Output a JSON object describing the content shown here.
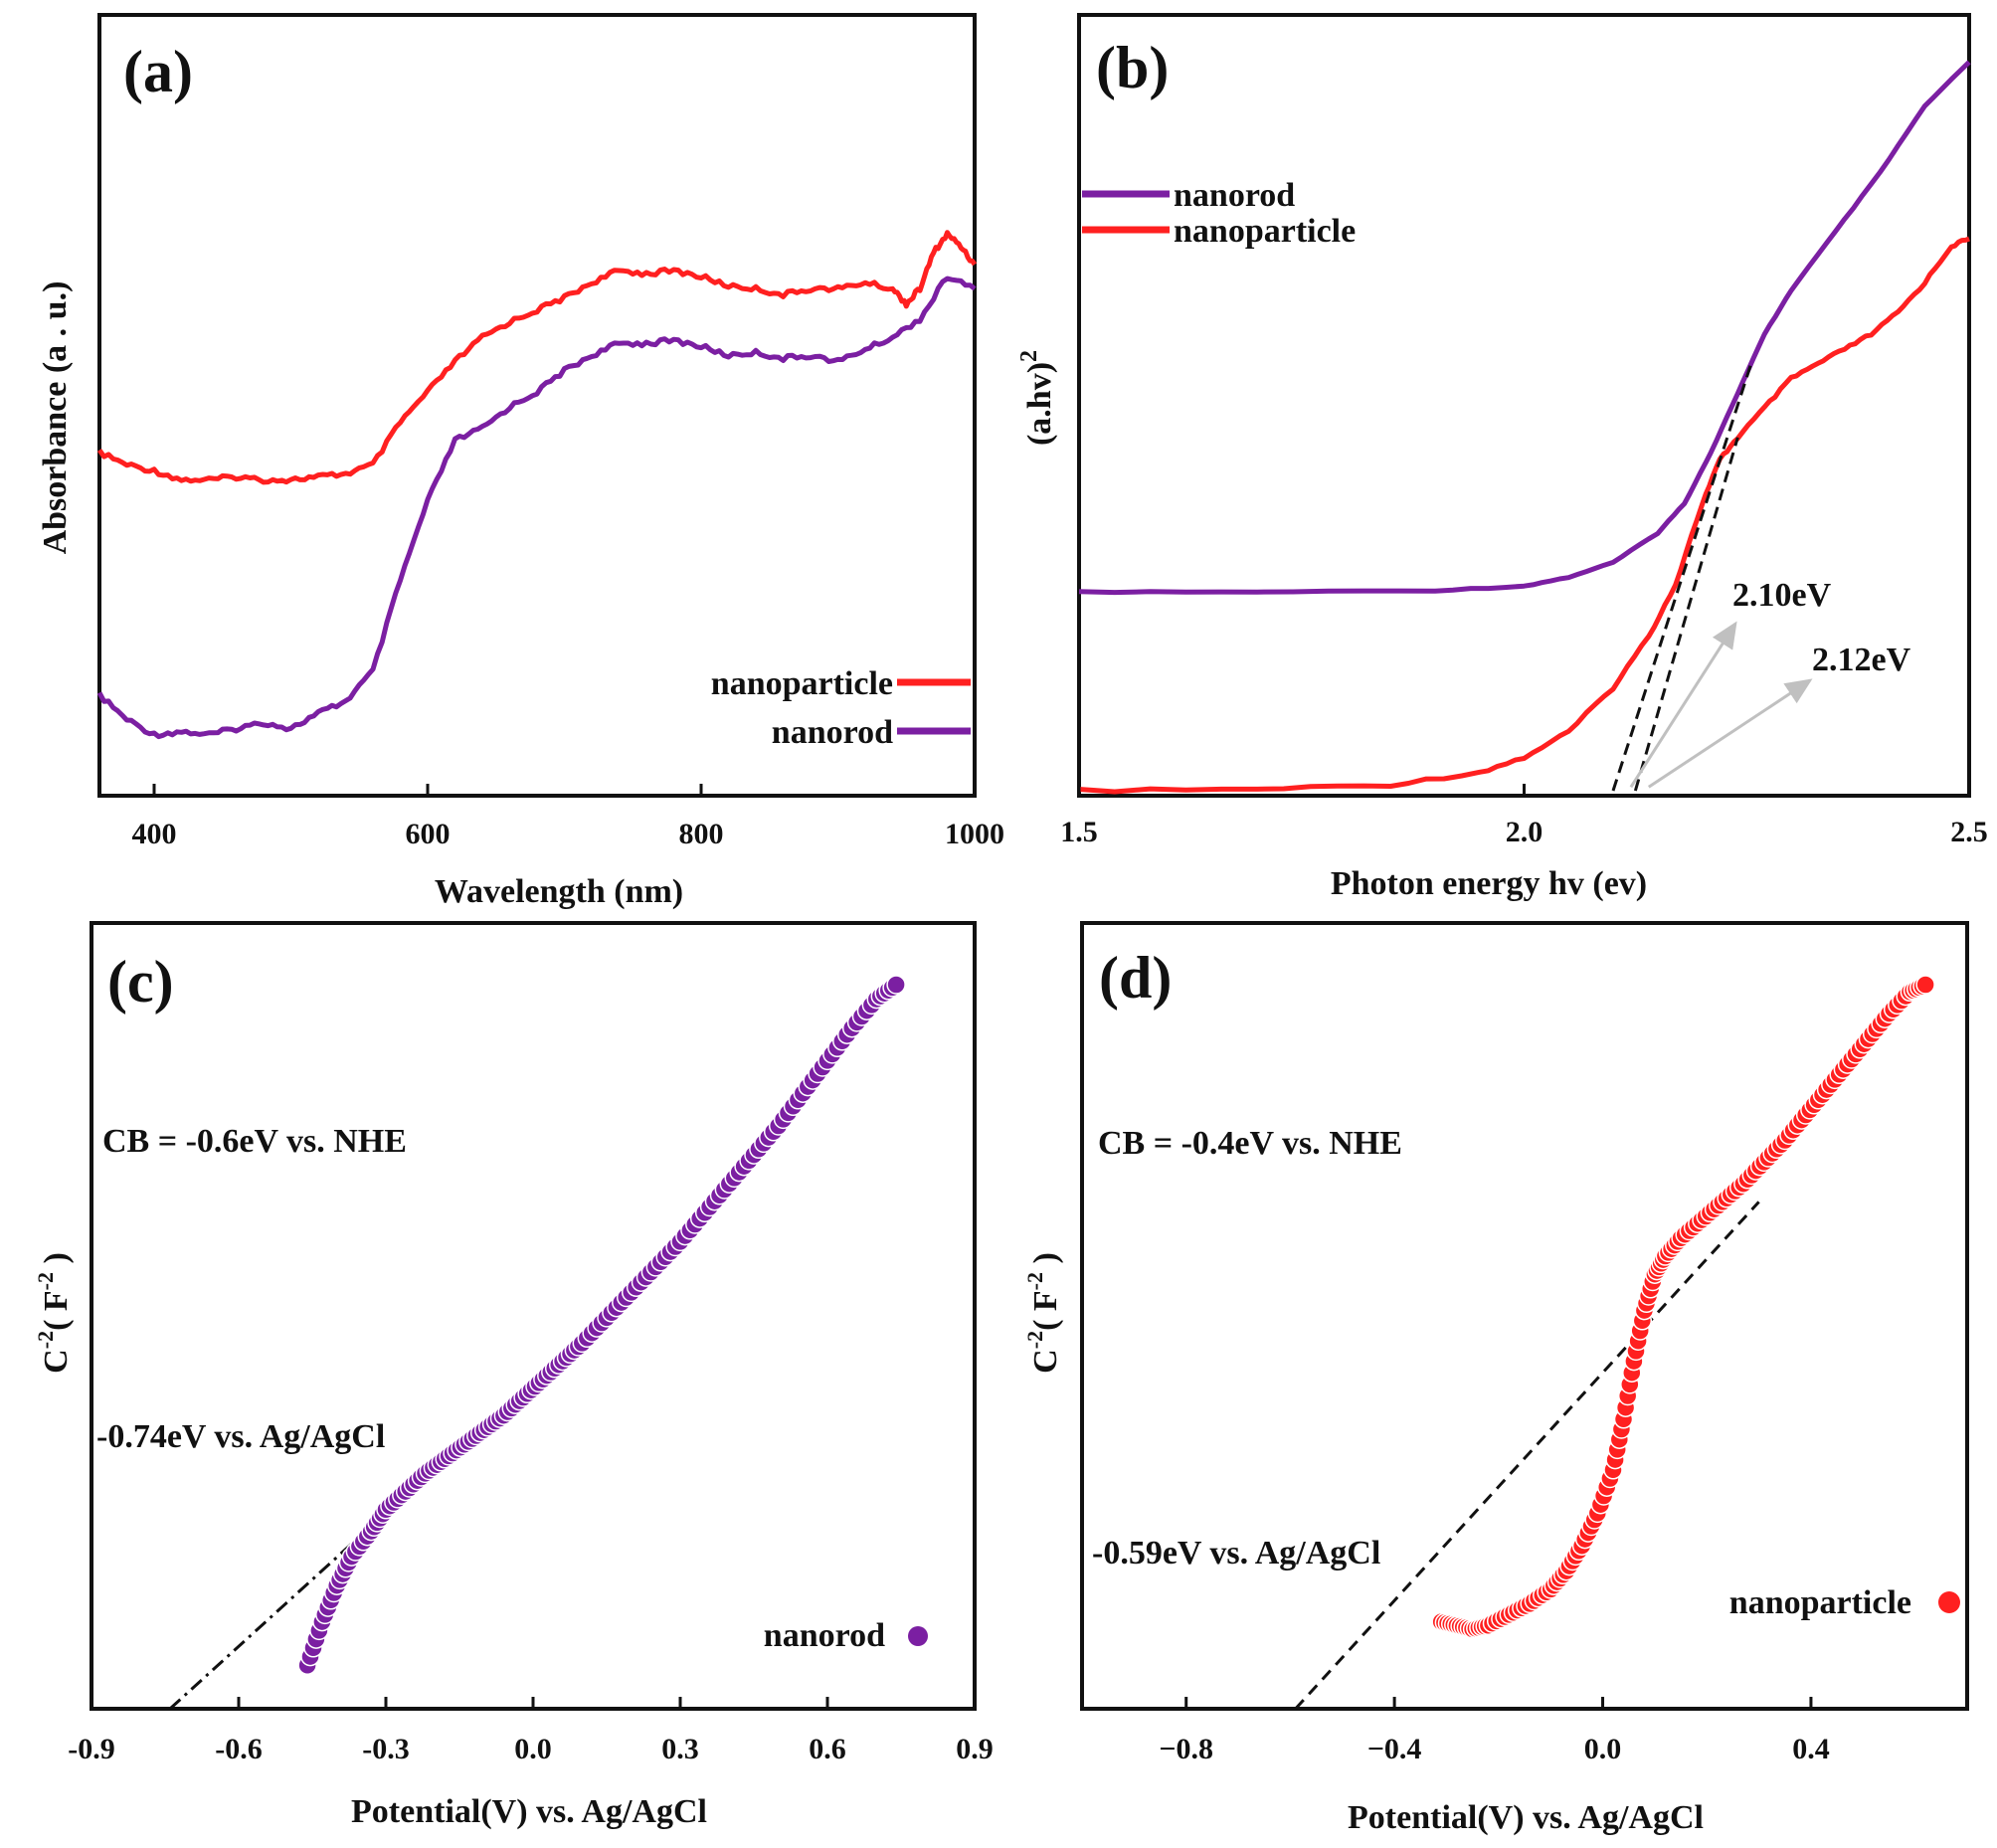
{
  "colors": {
    "nanorod": "#7b1fa2",
    "nanoparticle": "#ff2020",
    "arrow": "#c0c0c0",
    "axis": "#111111"
  },
  "chart_data": [
    {
      "panel": "a",
      "panel_label": "(a)",
      "type": "line",
      "title": "",
      "xlabel": "Wavelength (nm)",
      "ylabel": "Absorbance (a . u.)",
      "xlim": [
        360,
        1000
      ],
      "ylim": [
        0,
        1
      ],
      "xticks": [
        400,
        600,
        800,
        1000
      ],
      "xtick_labels": [
        "400",
        "600",
        "800",
        "1000"
      ],
      "yticks_shown": false,
      "legend": "bottom-right",
      "series": [
        {
          "name": "nanoparticle",
          "color": "#ff2020",
          "x": [
            360,
            380,
            400,
            420,
            440,
            460,
            480,
            500,
            520,
            540,
            560,
            580,
            600,
            620,
            640,
            660,
            680,
            700,
            720,
            740,
            760,
            780,
            800,
            820,
            840,
            860,
            880,
            900,
            920,
            940,
            950,
            960,
            970,
            980,
            990,
            1000
          ],
          "y": [
            0.5,
            0.48,
            0.47,
            0.455,
            0.455,
            0.46,
            0.455,
            0.455,
            0.46,
            0.465,
            0.48,
            0.55,
            0.6,
            0.65,
            0.69,
            0.715,
            0.735,
            0.755,
            0.78,
            0.8,
            0.795,
            0.8,
            0.79,
            0.775,
            0.77,
            0.76,
            0.77,
            0.77,
            0.78,
            0.77,
            0.745,
            0.77,
            0.83,
            0.86,
            0.84,
            0.81
          ]
        },
        {
          "name": "nanorod",
          "color": "#7b1fa2",
          "x": [
            360,
            380,
            400,
            420,
            440,
            460,
            480,
            500,
            520,
            540,
            560,
            580,
            600,
            620,
            640,
            660,
            680,
            700,
            720,
            740,
            760,
            780,
            800,
            820,
            840,
            860,
            880,
            900,
            920,
            940,
            960,
            980,
            1000
          ],
          "y": [
            0.1,
            0.06,
            0.035,
            0.04,
            0.035,
            0.045,
            0.055,
            0.045,
            0.07,
            0.09,
            0.14,
            0.29,
            0.42,
            0.52,
            0.54,
            0.575,
            0.6,
            0.635,
            0.66,
            0.68,
            0.68,
            0.685,
            0.675,
            0.66,
            0.665,
            0.655,
            0.66,
            0.65,
            0.67,
            0.69,
            0.72,
            0.79,
            0.77
          ]
        }
      ]
    },
    {
      "panel": "b",
      "panel_label": "(b)",
      "type": "line",
      "title": "",
      "xlabel": "Photon energy hv (ev)",
      "ylabel": "(a.hv)",
      "ylabel_superscript": "2",
      "xlim": [
        1.5,
        2.5
      ],
      "ylim": [
        0,
        1
      ],
      "xticks": [
        1.5,
        2.0,
        2.5
      ],
      "xtick_labels": [
        "1.5",
        "2.0",
        "2.5"
      ],
      "yticks_shown": false,
      "legend": "top-left",
      "series": [
        {
          "name": "nanorod",
          "color": "#7b1fa2",
          "x": [
            1.5,
            1.7,
            1.9,
            2.0,
            2.05,
            2.1,
            2.15,
            2.18,
            2.21,
            2.24,
            2.27,
            2.3,
            2.35,
            2.4,
            2.45,
            2.5
          ],
          "y": [
            0.27,
            0.27,
            0.272,
            0.278,
            0.29,
            0.31,
            0.35,
            0.39,
            0.46,
            0.54,
            0.62,
            0.68,
            0.76,
            0.84,
            0.93,
            0.99
          ]
        },
        {
          "name": "nanoparticle",
          "color": "#ff2020",
          "x": [
            1.5,
            1.7,
            1.85,
            1.95,
            2.0,
            2.05,
            2.1,
            2.14,
            2.17,
            2.2,
            2.22,
            2.24,
            2.27,
            2.3,
            2.33,
            2.36,
            2.39,
            2.42,
            2.45,
            2.48,
            2.5
          ],
          "y": [
            0.0,
            0.002,
            0.008,
            0.025,
            0.045,
            0.08,
            0.14,
            0.21,
            0.28,
            0.39,
            0.45,
            0.48,
            0.52,
            0.56,
            0.58,
            0.6,
            0.62,
            0.65,
            0.69,
            0.74,
            0.75
          ]
        }
      ],
      "annotations": [
        {
          "text": "2.10eV",
          "intercept": 2.1
        },
        {
          "text": "2.12eV",
          "intercept": 2.12
        }
      ]
    },
    {
      "panel": "c",
      "panel_label": "(c)",
      "type": "scatter",
      "title": "",
      "xlabel": "Potential(V) vs. Ag/AgCl",
      "ylabel": "C",
      "ylabel_superscript": "-2",
      "ylabel_unit": "( F",
      "ylabel_unit_superscript": "-2",
      "ylabel_close": " )",
      "xlim": [
        -0.9,
        0.9
      ],
      "ylim": [
        0,
        1
      ],
      "xticks": [
        -0.9,
        -0.6,
        -0.3,
        0.0,
        0.3,
        0.6,
        0.9
      ],
      "xtick_labels": [
        "-0.9",
        "-0.6",
        "-0.3",
        "0.0",
        "0.3",
        "0.6",
        "0.9"
      ],
      "yticks_shown": false,
      "legend": "bottom-right",
      "series": [
        {
          "name": "nanorod",
          "color": "#7b1fa2",
          "x": [
            -0.46,
            -0.43,
            -0.4,
            -0.37,
            -0.33,
            -0.3,
            -0.26,
            -0.22,
            -0.18,
            -0.14,
            -0.1,
            -0.06,
            -0.02,
            0.02,
            0.06,
            0.1,
            0.15,
            0.2,
            0.25,
            0.3,
            0.35,
            0.4,
            0.45,
            0.5,
            0.55,
            0.6,
            0.65,
            0.7,
            0.74
          ],
          "y": [
            0.06,
            0.12,
            0.17,
            0.21,
            0.245,
            0.275,
            0.3,
            0.325,
            0.345,
            0.365,
            0.385,
            0.405,
            0.43,
            0.455,
            0.48,
            0.505,
            0.54,
            0.575,
            0.61,
            0.645,
            0.685,
            0.725,
            0.765,
            0.805,
            0.85,
            0.895,
            0.94,
            0.98,
            1.0
          ]
        }
      ],
      "fit_line": {
        "x": [
          -0.74,
          0.3
        ],
        "y": [
          0.0,
          0.64
        ]
      },
      "annotations": [
        {
          "text": "CB = -0.6eV vs. NHE"
        },
        {
          "text": "-0.74eV vs. Ag/AgCl"
        }
      ]
    },
    {
      "panel": "d",
      "panel_label": "(d)",
      "type": "scatter",
      "title": "",
      "xlabel": "Potential(V) vs. Ag/AgCl",
      "ylabel": "C",
      "ylabel_superscript": "-2",
      "ylabel_unit": "( F",
      "ylabel_unit_superscript": "-2",
      "ylabel_close": " )",
      "xlim": [
        -1.0,
        0.7
      ],
      "ylim": [
        0,
        1
      ],
      "xticks": [
        -0.8,
        -0.4,
        0.0,
        0.4
      ],
      "xtick_labels": [
        "−0.8",
        "−0.4",
        "0.0",
        "0.4"
      ],
      "yticks_shown": false,
      "legend": "bottom-right",
      "series": [
        {
          "name": "nanoparticle",
          "color": "#ff2020",
          "x": [
            -0.31,
            -0.28,
            -0.25,
            -0.22,
            -0.18,
            -0.14,
            -0.1,
            -0.07,
            -0.04,
            -0.01,
            0.02,
            0.04,
            0.06,
            0.08,
            0.1,
            0.12,
            0.15,
            0.19,
            0.23,
            0.27,
            0.31,
            0.35,
            0.39,
            0.43,
            0.47,
            0.51,
            0.55,
            0.59,
            0.62
          ],
          "y": [
            0.12,
            0.115,
            0.11,
            0.115,
            0.13,
            0.145,
            0.165,
            0.19,
            0.225,
            0.27,
            0.33,
            0.4,
            0.48,
            0.55,
            0.6,
            0.625,
            0.65,
            0.675,
            0.7,
            0.725,
            0.755,
            0.785,
            0.82,
            0.855,
            0.89,
            0.925,
            0.96,
            0.99,
            1.0
          ]
        }
      ],
      "fit_line": {
        "x": [
          -0.59,
          0.3
        ],
        "y": [
          0.0,
          0.7
        ]
      },
      "annotations": [
        {
          "text": "CB = -0.4eV vs. NHE"
        },
        {
          "text": "-0.59eV vs. Ag/AgCl"
        }
      ]
    }
  ]
}
